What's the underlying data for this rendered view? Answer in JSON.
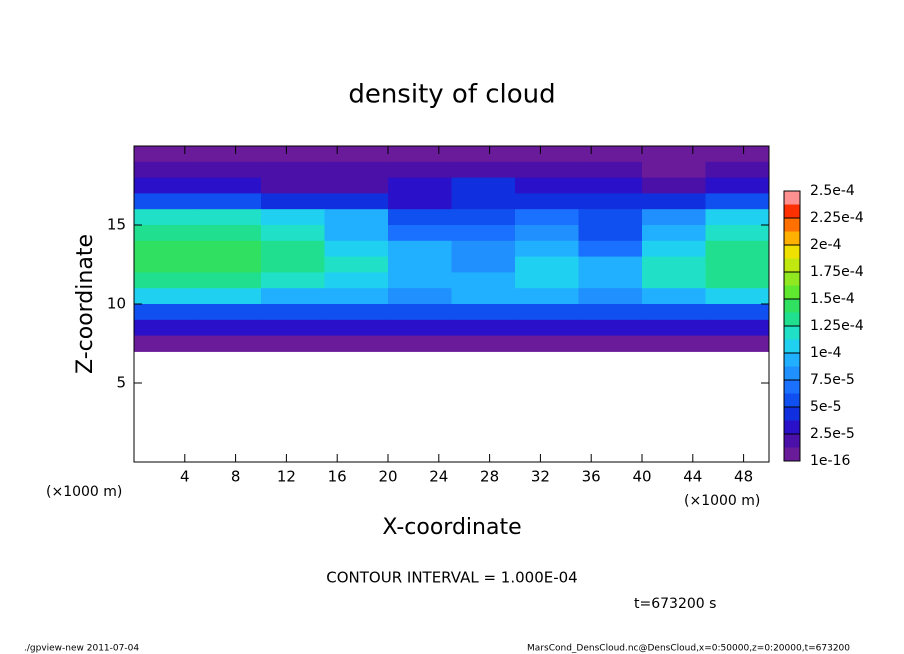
{
  "chart_data": {
    "type": "heatmap",
    "title": "density of cloud",
    "x_label": "X-coordinate",
    "y_label": "Z-coordinate",
    "x_unit": "(×1000 m)",
    "y_unit": "(×1000 m)",
    "annotation": "CONTOUR INTERVAL = 1.000E-04",
    "time_label": "t=673200 s",
    "footer_left": "./gpview-new  2011-07-04",
    "footer_right": "MarsCond_DensCloud.nc@DensCloud,x=0:50000,z=0:20000,t=673200",
    "xlim": [
      0,
      50
    ],
    "ylim": [
      0,
      20
    ],
    "xticks": [
      4,
      8,
      12,
      16,
      20,
      24,
      28,
      32,
      36,
      40,
      44,
      48
    ],
    "yticks": [
      5,
      10,
      15
    ],
    "x": [
      2.5,
      7.5,
      12.5,
      17.5,
      22.5,
      27.5,
      32.5,
      37.5,
      42.5,
      47.5
    ],
    "y": [
      19.5,
      18.5,
      17.5,
      16.5,
      15.5,
      14.5,
      13.5,
      12.5,
      11.5,
      10.5,
      9.5,
      8.5,
      7.5
    ],
    "z": [
      [
        1e-05,
        1e-05,
        1e-05,
        1e-05,
        1e-05,
        1e-05,
        1e-05,
        1e-05,
        1e-05,
        1e-05
      ],
      [
        2e-05,
        2e-05,
        2e-05,
        2e-05,
        2e-05,
        2e-05,
        2e-05,
        2e-05,
        5e-06,
        2e-05
      ],
      [
        3e-05,
        3e-05,
        2.5e-05,
        2e-05,
        3e-05,
        4e-05,
        3e-05,
        3e-05,
        2e-05,
        3e-05
      ],
      [
        6e-05,
        6e-05,
        5e-05,
        4e-05,
        3e-05,
        5e-05,
        5e-05,
        4e-05,
        4e-05,
        6e-05
      ],
      [
        0.00012,
        0.00012,
        0.00011,
        9e-05,
        6e-05,
        6e-05,
        7e-05,
        6e-05,
        8e-05,
        0.00011
      ],
      [
        0.00013,
        0.00013,
        0.00012,
        0.0001,
        7e-05,
        7e-05,
        8e-05,
        6e-05,
        0.0001,
        0.00012
      ],
      [
        0.00014,
        0.00014,
        0.00013,
        0.00011,
        9e-05,
        8e-05,
        9e-05,
        7e-05,
        0.00011,
        0.00013
      ],
      [
        0.00014,
        0.00014,
        0.00013,
        0.00012,
        0.0001,
        8e-05,
        0.00011,
        9e-05,
        0.00012,
        0.00013
      ],
      [
        0.00013,
        0.00013,
        0.00012,
        0.00011,
        0.0001,
        9e-05,
        0.00011,
        0.0001,
        0.00012,
        0.00013
      ],
      [
        0.00011,
        0.00011,
        0.0001,
        9e-05,
        8e-05,
        9e-05,
        0.0001,
        8e-05,
        0.0001,
        0.00011
      ],
      [
        6e-05,
        6e-05,
        6e-05,
        6e-05,
        6e-05,
        6e-05,
        6e-05,
        6e-05,
        6e-05,
        6e-05
      ],
      [
        3e-05,
        3e-05,
        3e-05,
        3e-05,
        3e-05,
        3e-05,
        3e-05,
        3e-05,
        3e-05,
        3e-05
      ],
      [
        1e-05,
        1e-05,
        1e-05,
        1e-05,
        1e-05,
        1e-05,
        1e-05,
        1e-05,
        1e-05,
        1e-05
      ]
    ],
    "clim": [
      1e-16,
      0.00025
    ],
    "colorbar_ticks": [
      {
        "value": 1e-16,
        "label": "1e-16"
      },
      {
        "value": 2.5e-05,
        "label": "2.5e-5"
      },
      {
        "value": 5e-05,
        "label": "5e-5"
      },
      {
        "value": 7.5e-05,
        "label": "7.5e-5"
      },
      {
        "value": 0.0001,
        "label": "1e-4"
      },
      {
        "value": 0.000125,
        "label": "1.25e-4"
      },
      {
        "value": 0.00015,
        "label": "1.5e-4"
      },
      {
        "value": 0.000175,
        "label": "1.75e-4"
      },
      {
        "value": 0.0002,
        "label": "2e-4"
      },
      {
        "value": 0.000225,
        "label": "2.25e-4"
      },
      {
        "value": 0.00025,
        "label": "2.5e-4"
      }
    ],
    "colors": [
      "#6a1b9a",
      "#4b10a8",
      "#2a10c8",
      "#1030e0",
      "#1050f0",
      "#1a70ff",
      "#2090ff",
      "#20b0ff",
      "#20d0f0",
      "#20e0c8",
      "#20e090",
      "#30e060",
      "#60e830",
      "#90e820",
      "#c0e810",
      "#f0e000",
      "#ffb000",
      "#ff7000",
      "#ff3000",
      "#ff9090"
    ]
  }
}
